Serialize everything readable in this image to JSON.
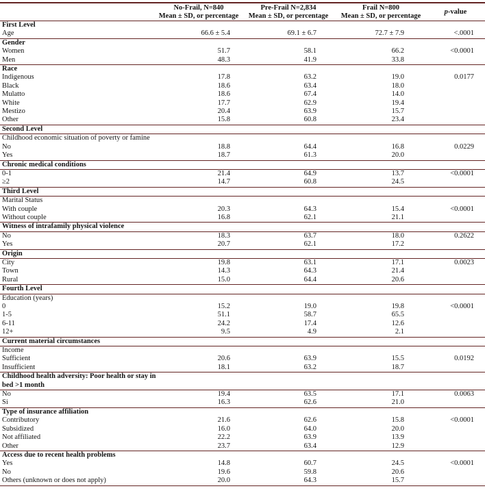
{
  "colors": {
    "rule_color": "#632423",
    "text_color": "#141414"
  },
  "header": {
    "label_column": "",
    "columns": [
      {
        "line1": "No-Frail, N=840",
        "line2": "Mean ± SD, or percentage"
      },
      {
        "line1": "Pre-Frail N=2,834",
        "line2": "Mean ± SD, or percentage"
      },
      {
        "line1": "Frail N=800",
        "line2": "Mean ± SD, or percentage"
      }
    ],
    "pvalue": {
      "italic": "p",
      "rest": "-value"
    }
  },
  "rows": [
    {
      "label": "First Level",
      "bold": true,
      "values": [
        "",
        "",
        ""
      ],
      "p": "",
      "rule": false
    },
    {
      "label": "Age",
      "bold": false,
      "values": [
        "66.6 ± 5.4",
        "69.1 ± 6.7",
        "72.7 ± 7.9"
      ],
      "p": "<.0001",
      "rule": true
    },
    {
      "label": "Gender",
      "bold": true,
      "values": [
        "",
        "",
        ""
      ],
      "p": "",
      "rule": false
    },
    {
      "label": "Women",
      "bold": false,
      "values": [
        "51.7",
        "58.1",
        "66.2"
      ],
      "p": "<0.0001",
      "rule": false
    },
    {
      "label": "Men",
      "bold": false,
      "values": [
        "48.3",
        "41.9",
        "33.8"
      ],
      "p": "",
      "rule": true
    },
    {
      "label": "Race",
      "bold": true,
      "values": [
        "",
        "",
        ""
      ],
      "p": "",
      "rule": false
    },
    {
      "label": "Indigenous",
      "bold": false,
      "values": [
        "17.8",
        "63.2",
        "19.0"
      ],
      "p": "0.0177",
      "rule": false
    },
    {
      "label": "Black",
      "bold": false,
      "values": [
        "18.6",
        "63.4",
        "18.0"
      ],
      "p": "",
      "rule": false
    },
    {
      "label": "Mulatto",
      "bold": false,
      "values": [
        "18.6",
        "67.4",
        "14.0"
      ],
      "p": "",
      "rule": false
    },
    {
      "label": "White",
      "bold": false,
      "values": [
        "17.7",
        "62.9",
        "19.4"
      ],
      "p": "",
      "rule": false
    },
    {
      "label": "Mestizo",
      "bold": false,
      "values": [
        "20.4",
        "63.9",
        "15.7"
      ],
      "p": "",
      "rule": false
    },
    {
      "label": "Other",
      "bold": false,
      "values": [
        "15.8",
        "60.8",
        "23.4"
      ],
      "p": "",
      "rule": true
    },
    {
      "label": "Second Level",
      "bold": true,
      "values": [
        "",
        "",
        ""
      ],
      "p": "",
      "rule": true
    },
    {
      "label": "Childhood economic situation of poverty or famine",
      "bold": false,
      "values": [
        "",
        "",
        ""
      ],
      "p": "",
      "rule": false
    },
    {
      "label": "No",
      "bold": false,
      "values": [
        "18.8",
        "64.4",
        "16.8"
      ],
      "p": "0.0229",
      "rule": false
    },
    {
      "label": "Yes",
      "bold": false,
      "values": [
        "18.7",
        "61.3",
        "20.0"
      ],
      "p": "",
      "rule": true
    },
    {
      "label": "Chronic medical conditions",
      "bold": true,
      "values": [
        "",
        "",
        ""
      ],
      "p": "",
      "rule": true
    },
    {
      "label": "0-1",
      "bold": false,
      "values": [
        "21.4",
        "64.9",
        "13.7"
      ],
      "p": "<0.0001",
      "rule": false
    },
    {
      "label": "≥2",
      "bold": false,
      "values": [
        "14.7",
        "60.8",
        "24.5"
      ],
      "p": "",
      "rule": true
    },
    {
      "label": "Third Level",
      "bold": true,
      "values": [
        "",
        "",
        ""
      ],
      "p": "",
      "rule": true
    },
    {
      "label": "Marital Status",
      "bold": false,
      "values": [
        "",
        "",
        ""
      ],
      "p": "",
      "rule": false
    },
    {
      "label": "With couple",
      "bold": false,
      "values": [
        "20.3",
        "64.3",
        "15.4"
      ],
      "p": "<0.0001",
      "rule": false
    },
    {
      "label": "Without couple",
      "bold": false,
      "values": [
        "16.8",
        "62.1",
        "21.1"
      ],
      "p": "",
      "rule": true
    },
    {
      "label": "Witness of intrafamily physical violence",
      "bold": true,
      "values": [
        "",
        "",
        ""
      ],
      "p": "",
      "rule": true
    },
    {
      "label": "No",
      "bold": false,
      "values": [
        "18.3",
        "63.7",
        "18.0"
      ],
      "p": "0.2622",
      "rule": false
    },
    {
      "label": "Yes",
      "bold": false,
      "values": [
        "20.7",
        "62.1",
        "17.2"
      ],
      "p": "",
      "rule": true
    },
    {
      "label": "Origin",
      "bold": true,
      "values": [
        "",
        "",
        ""
      ],
      "p": "",
      "rule": true
    },
    {
      "label": "City",
      "bold": false,
      "values": [
        "19.8",
        "63.1",
        "17.1"
      ],
      "p": "0.0023",
      "rule": false
    },
    {
      "label": "Town",
      "bold": false,
      "values": [
        "14.3",
        "64.3",
        "21.4"
      ],
      "p": "",
      "rule": false
    },
    {
      "label": "Rural",
      "bold": false,
      "values": [
        "15.0",
        "64.4",
        "20.6"
      ],
      "p": "",
      "rule": true
    },
    {
      "label": "Fourth Level",
      "bold": true,
      "values": [
        "",
        "",
        ""
      ],
      "p": "",
      "rule": true
    },
    {
      "label": "Education (years)",
      "bold": false,
      "values": [
        "",
        "",
        ""
      ],
      "p": "",
      "rule": false
    },
    {
      "label": "0",
      "bold": false,
      "values": [
        "15.2",
        "19.0",
        "19.8"
      ],
      "p": "<0.0001",
      "rule": false
    },
    {
      "label": "1-5",
      "bold": false,
      "values": [
        "51.1",
        "58.7",
        "65.5"
      ],
      "p": "",
      "rule": false
    },
    {
      "label": "6-11",
      "bold": false,
      "values": [
        "24.2",
        "17.4",
        "12.6"
      ],
      "p": "",
      "rule": false
    },
    {
      "label": "12+",
      "bold": false,
      "values": [
        "9.5",
        "4.9",
        "2.1"
      ],
      "p": "",
      "rule": true
    },
    {
      "label": "Current material circumstances",
      "bold": true,
      "values": [
        "",
        "",
        ""
      ],
      "p": "",
      "rule": true
    },
    {
      "label": "Income",
      "bold": false,
      "values": [
        "",
        "",
        ""
      ],
      "p": "",
      "rule": false
    },
    {
      "label": "Sufficient",
      "bold": false,
      "values": [
        "20.6",
        "63.9",
        "15.5"
      ],
      "p": "0.0192",
      "rule": false
    },
    {
      "label": "Insufficient",
      "bold": false,
      "values": [
        "18.1",
        "63.2",
        "18.7"
      ],
      "p": "",
      "rule": true
    },
    {
      "label": "Childhood health adversity: Poor health or stay in bed >1 month",
      "bold": true,
      "values": [
        "",
        "",
        ""
      ],
      "p": "",
      "rule": true
    },
    {
      "label": "No",
      "bold": false,
      "values": [
        "19.4",
        "63.5",
        "17.1"
      ],
      "p": "0.0063",
      "rule": false
    },
    {
      "label": "Si",
      "bold": false,
      "values": [
        "16.3",
        "62.6",
        "21.0"
      ],
      "p": "",
      "rule": true
    },
    {
      "label": "Type of insurance affiliation",
      "bold": true,
      "values": [
        "",
        "",
        ""
      ],
      "p": "",
      "rule": false
    },
    {
      "label": "Contributory",
      "bold": false,
      "values": [
        "21.6",
        "62.6",
        "15.8"
      ],
      "p": "<0.0001",
      "rule": false
    },
    {
      "label": "Subsidized",
      "bold": false,
      "values": [
        "16.0",
        "64.0",
        "20.0"
      ],
      "p": "",
      "rule": false
    },
    {
      "label": "Not affiliated",
      "bold": false,
      "values": [
        "22.2",
        "63.9",
        "13.9"
      ],
      "p": "",
      "rule": false
    },
    {
      "label": "Other",
      "bold": false,
      "values": [
        "23.7",
        "63.4",
        "12.9"
      ],
      "p": "",
      "rule": true
    },
    {
      "label": "Access due to recent health problems",
      "bold": true,
      "values": [
        "",
        "",
        ""
      ],
      "p": "",
      "rule": false
    },
    {
      "label": "Yes",
      "bold": false,
      "values": [
        "14.8",
        "60.7",
        "24.5"
      ],
      "p": "<0.0001",
      "rule": false
    },
    {
      "label": "No",
      "bold": false,
      "values": [
        "19.6",
        "59.8",
        "20.6"
      ],
      "p": "",
      "rule": false
    },
    {
      "label": "Others (unknown or does not apply)",
      "bold": false,
      "values": [
        "20.0",
        "64.3",
        "15.7"
      ],
      "p": "",
      "rule": true
    }
  ]
}
